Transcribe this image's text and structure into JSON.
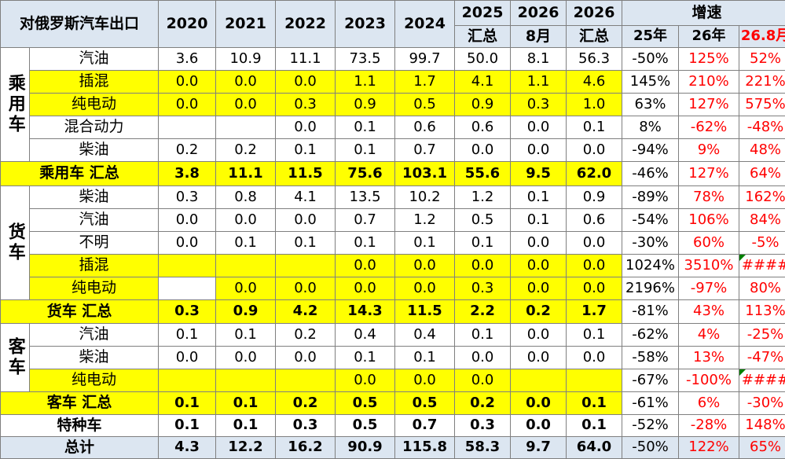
{
  "header": {
    "title": "对俄罗斯汽车出口",
    "years": [
      "2020",
      "2021",
      "2022",
      "2023",
      "2024"
    ],
    "y2025": [
      "2025",
      "汇总"
    ],
    "y2026m": [
      "2026",
      "8月"
    ],
    "y2026t": [
      "2026",
      "汇总"
    ],
    "growth": "增速",
    "g1": "25年",
    "g2": "26年",
    "g3": "26.8月"
  },
  "groups": {
    "passenger": "乘用车",
    "truck": "货车",
    "bus": "客车"
  },
  "rows": [
    {
      "label": "汽油",
      "vals": [
        "3.6",
        "10.9",
        "11.1",
        "73.5",
        "99.7",
        "50.0",
        "8.1",
        "56.3"
      ],
      "g": [
        "-50%",
        "125%",
        "52%"
      ]
    },
    {
      "label": "插混",
      "vals": [
        "0.0",
        "0.0",
        "0.0",
        "1.1",
        "1.7",
        "4.1",
        "1.1",
        "4.6"
      ],
      "g": [
        "145%",
        "210%",
        "221%"
      ]
    },
    {
      "label": "纯电动",
      "vals": [
        "0.0",
        "0.0",
        "0.3",
        "0.9",
        "0.5",
        "0.9",
        "0.3",
        "1.0"
      ],
      "g": [
        "63%",
        "127%",
        "575%"
      ]
    },
    {
      "label": "混合动力",
      "vals": [
        "",
        "",
        "0.0",
        "0.1",
        "0.6",
        "0.6",
        "0.0",
        "0.1"
      ],
      "g": [
        "8%",
        "-62%",
        "-48%"
      ]
    },
    {
      "label": "柴油",
      "vals": [
        "0.2",
        "0.2",
        "0.1",
        "0.1",
        "0.7",
        "0.0",
        "0.0",
        "0.0"
      ],
      "g": [
        "-94%",
        "9%",
        "48%"
      ]
    },
    {
      "label": "乘用车 汇总",
      "vals": [
        "3.8",
        "11.1",
        "11.5",
        "75.6",
        "103.1",
        "55.6",
        "9.5",
        "62.0"
      ],
      "g": [
        "-46%",
        "127%",
        "64%"
      ]
    },
    {
      "label": "柴油",
      "vals": [
        "0.3",
        "0.8",
        "4.1",
        "13.5",
        "10.2",
        "1.2",
        "0.1",
        "0.9"
      ],
      "g": [
        "-89%",
        "78%",
        "162%"
      ]
    },
    {
      "label": "汽油",
      "vals": [
        "0.0",
        "0.0",
        "0.0",
        "0.7",
        "1.2",
        "0.5",
        "0.1",
        "0.6"
      ],
      "g": [
        "-54%",
        "106%",
        "84%"
      ]
    },
    {
      "label": "不明",
      "vals": [
        "0.0",
        "0.1",
        "0.1",
        "0.1",
        "0.1",
        "0.1",
        "0.0",
        "0.0"
      ],
      "g": [
        "-30%",
        "60%",
        "-5%"
      ]
    },
    {
      "label": "插混",
      "vals": [
        "",
        "",
        "",
        "0.0",
        "0.0",
        "0.0",
        "0.0",
        "0.0"
      ],
      "g": [
        "1024%",
        "3510%",
        "####"
      ]
    },
    {
      "label": "纯电动",
      "vals": [
        "",
        "0.0",
        "0.0",
        "0.0",
        "0.0",
        "0.3",
        "0.0",
        "0.0"
      ],
      "g": [
        "2196%",
        "-97%",
        "80%"
      ]
    },
    {
      "label": "货车 汇总",
      "vals": [
        "0.3",
        "0.9",
        "4.2",
        "14.3",
        "11.5",
        "2.2",
        "0.2",
        "1.7"
      ],
      "g": [
        "-81%",
        "43%",
        "113%"
      ]
    },
    {
      "label": "汽油",
      "vals": [
        "0.1",
        "0.1",
        "0.2",
        "0.4",
        "0.4",
        "0.1",
        "0.0",
        "0.1"
      ],
      "g": [
        "-62%",
        "4%",
        "-25%"
      ]
    },
    {
      "label": "柴油",
      "vals": [
        "0.0",
        "0.0",
        "0.0",
        "0.1",
        "0.1",
        "0.0",
        "0.0",
        "0.0"
      ],
      "g": [
        "-58%",
        "13%",
        "-47%"
      ]
    },
    {
      "label": "纯电动",
      "vals": [
        "",
        "",
        "",
        "0.0",
        "0.0",
        "0.0",
        "",
        ""
      ],
      "g": [
        "-67%",
        "-100%",
        "####"
      ]
    },
    {
      "label": "客车 汇总",
      "vals": [
        "0.1",
        "0.1",
        "0.2",
        "0.5",
        "0.5",
        "0.2",
        "0.0",
        "0.1"
      ],
      "g": [
        "-61%",
        "6%",
        "-30%"
      ]
    },
    {
      "label": "特种车",
      "vals": [
        "0.1",
        "0.1",
        "0.3",
        "0.5",
        "0.7",
        "0.3",
        "0.0",
        "0.1"
      ],
      "g": [
        "-52%",
        "-28%",
        "148%"
      ]
    },
    {
      "label": "总计",
      "vals": [
        "4.3",
        "12.2",
        "16.2",
        "90.9",
        "115.8",
        "58.3",
        "9.7",
        "64.0"
      ],
      "g": [
        "-50%",
        "122%",
        "65%"
      ]
    }
  ],
  "colors": {
    "highlight": "#ffff00",
    "header_bg": "#dce6f1",
    "growth_red": "#ff0000",
    "marker": "#008000"
  }
}
